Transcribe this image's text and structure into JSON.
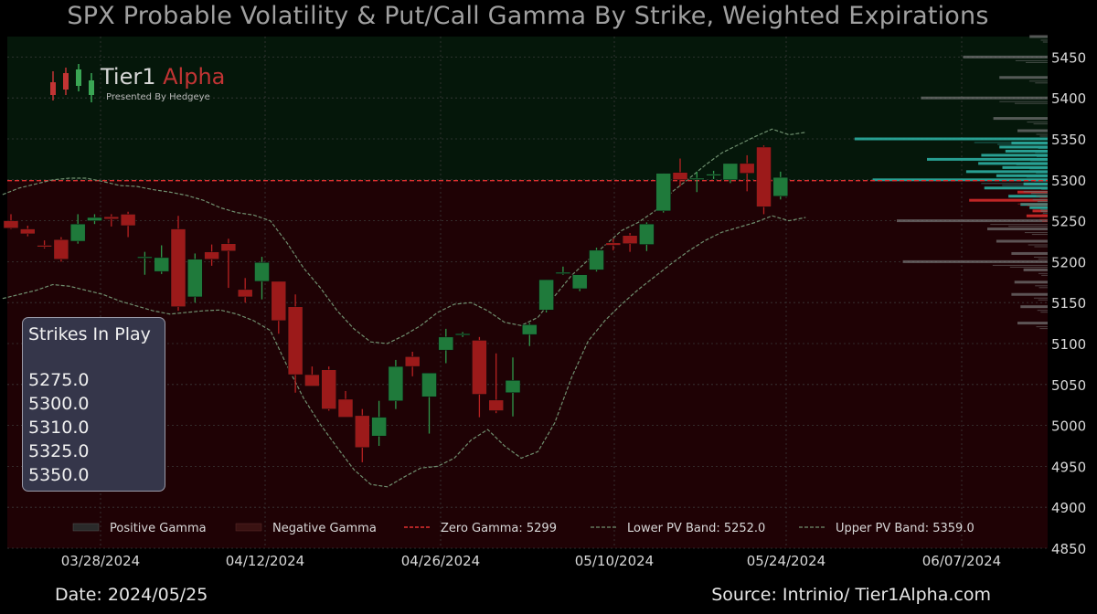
{
  "title": "SPX Probable Volatility & Put/Call Gamma By Strike, Weighted Expirations",
  "footer": {
    "date": "Date: 2024/05/25",
    "source": "Source: Intrinio/ Tier1Alpha.com"
  },
  "logo": {
    "brand_main": "Tier1",
    "brand_accent": "Alpha",
    "tagline": "Presented By Hedgeye"
  },
  "strikes_box": {
    "title": "Strikes In Play",
    "strikes": [
      "5275.0",
      "5300.0",
      "5310.0",
      "5325.0",
      "5350.0"
    ]
  },
  "colors": {
    "background": "#000000",
    "positive_region": "#05170a",
    "negative_region": "#1f0205",
    "candle_up": "#1f7a3b",
    "candle_down": "#9c1a1a",
    "band_color": "#6f8f6f",
    "zero_gamma": "#e03030",
    "gamma_positive": "#2aa69a",
    "gamma_negative": "#c82828",
    "gamma_minor": "#777777"
  },
  "chart_data": {
    "type": "candlestick",
    "title": "SPX Probable Volatility & Put/Call Gamma By Strike, Weighted Expirations",
    "ylim": [
      4850,
      5475
    ],
    "y_ticks": [
      4850,
      4900,
      4950,
      5000,
      5050,
      5100,
      5150,
      5200,
      5250,
      5300,
      5350,
      5400,
      5450
    ],
    "x_ticks": [
      "03/28/2024",
      "04/12/2024",
      "04/26/2024",
      "05/10/2024",
      "05/24/2024",
      "06/07/2024"
    ],
    "grid": true,
    "zero_gamma": 5299,
    "legend": {
      "placement": "bottom",
      "items": [
        {
          "key": "positive",
          "label": "Positive Gamma"
        },
        {
          "key": "negative",
          "label": "Negative Gamma"
        },
        {
          "key": "zero",
          "label": "Zero Gamma: 5299"
        },
        {
          "key": "lower",
          "label": "Lower PV Band: 5252.0"
        },
        {
          "key": "upper",
          "label": "Upper PV Band: 5359.0"
        }
      ]
    },
    "candles": [
      {
        "date": "2024-03-22",
        "open": 5250,
        "high": 5258,
        "low": 5240,
        "close": 5241
      },
      {
        "date": "2024-03-25",
        "open": 5240,
        "high": 5244,
        "low": 5231,
        "close": 5234
      },
      {
        "date": "2024-03-26",
        "open": 5220,
        "high": 5226,
        "low": 5216,
        "close": 5218
      },
      {
        "date": "2024-03-27",
        "open": 5227,
        "high": 5230,
        "low": 5200,
        "close": 5203
      },
      {
        "date": "2024-03-28",
        "open": 5225,
        "high": 5258,
        "low": 5222,
        "close": 5246
      },
      {
        "date": "2024-04-01",
        "open": 5250,
        "high": 5258,
        "low": 5246,
        "close": 5254
      },
      {
        "date": "2024-04-02",
        "open": 5255,
        "high": 5258,
        "low": 5243,
        "close": 5252
      },
      {
        "date": "2024-04-03",
        "open": 5258,
        "high": 5261,
        "low": 5230,
        "close": 5244
      },
      {
        "date": "2024-04-04",
        "open": 5205,
        "high": 5212,
        "low": 5184,
        "close": 5206
      },
      {
        "date": "2024-04-05",
        "open": 5188,
        "high": 5220,
        "low": 5185,
        "close": 5205
      },
      {
        "date": "2024-04-08",
        "open": 5240,
        "high": 5256,
        "low": 5140,
        "close": 5145
      },
      {
        "date": "2024-04-09",
        "open": 5157,
        "high": 5210,
        "low": 5150,
        "close": 5203
      },
      {
        "date": "2024-04-10",
        "open": 5212,
        "high": 5221,
        "low": 5195,
        "close": 5203
      },
      {
        "date": "2024-04-11",
        "open": 5222,
        "high": 5228,
        "low": 5168,
        "close": 5213
      },
      {
        "date": "2024-04-12",
        "open": 5166,
        "high": 5180,
        "low": 5150,
        "close": 5157
      },
      {
        "date": "2024-04-15",
        "open": 5176,
        "high": 5206,
        "low": 5154,
        "close": 5199
      },
      {
        "date": "2024-04-16",
        "open": 5176,
        "high": 5176,
        "low": 5112,
        "close": 5128
      },
      {
        "date": "2024-04-17",
        "open": 5145,
        "high": 5160,
        "low": 5040,
        "close": 5062
      },
      {
        "date": "2024-04-18",
        "open": 5062,
        "high": 5072,
        "low": 5048,
        "close": 5048
      },
      {
        "date": "2024-04-19",
        "open": 5068,
        "high": 5072,
        "low": 5018,
        "close": 5020
      },
      {
        "date": "2024-04-22",
        "open": 5032,
        "high": 5042,
        "low": 5012,
        "close": 5010
      },
      {
        "date": "2024-04-23",
        "open": 5012,
        "high": 5020,
        "low": 4955,
        "close": 4973
      },
      {
        "date": "2024-04-24",
        "open": 4987,
        "high": 5030,
        "low": 4975,
        "close": 5010
      },
      {
        "date": "2024-04-25",
        "open": 5030,
        "high": 5080,
        "low": 5020,
        "close": 5072
      },
      {
        "date": "2024-04-26",
        "open": 5084,
        "high": 5090,
        "low": 5060,
        "close": 5072
      },
      {
        "date": "2024-04-29",
        "open": 5035,
        "high": 5058,
        "low": 4990,
        "close": 5064
      },
      {
        "date": "2024-04-30",
        "open": 5092,
        "high": 5118,
        "low": 5076,
        "close": 5108
      },
      {
        "date": "2024-05-01",
        "open": 5112,
        "high": 5114,
        "low": 5108,
        "close": 5112
      },
      {
        "date": "2024-05-02",
        "open": 5104,
        "high": 5108,
        "low": 5010,
        "close": 5038
      },
      {
        "date": "2024-05-03",
        "open": 5031,
        "high": 5088,
        "low": 5015,
        "close": 5018
      },
      {
        "date": "2024-05-06",
        "open": 5040,
        "high": 5083,
        "low": 5011,
        "close": 5055
      },
      {
        "date": "2024-05-07",
        "open": 5111,
        "high": 5125,
        "low": 5097,
        "close": 5123
      },
      {
        "date": "2024-05-08",
        "open": 5141,
        "high": 5178,
        "low": 5138,
        "close": 5178
      },
      {
        "date": "2024-05-09",
        "open": 5187,
        "high": 5194,
        "low": 5184,
        "close": 5187
      },
      {
        "date": "2024-05-10",
        "open": 5167,
        "high": 5184,
        "low": 5164,
        "close": 5184
      },
      {
        "date": "2024-05-13",
        "open": 5190,
        "high": 5217,
        "low": 5188,
        "close": 5214
      },
      {
        "date": "2024-05-14",
        "open": 5223,
        "high": 5228,
        "low": 5214,
        "close": 5220
      },
      {
        "date": "2024-05-15",
        "open": 5232,
        "high": 5235,
        "low": 5212,
        "close": 5222
      },
      {
        "date": "2024-05-16",
        "open": 5221,
        "high": 5248,
        "low": 5213,
        "close": 5246
      },
      {
        "date": "2024-05-17",
        "open": 5262,
        "high": 5308,
        "low": 5260,
        "close": 5308
      },
      {
        "date": "2024-05-20",
        "open": 5309,
        "high": 5326,
        "low": 5292,
        "close": 5300
      },
      {
        "date": "2024-05-21",
        "open": 5301,
        "high": 5310,
        "low": 5285,
        "close": 5302
      },
      {
        "date": "2024-05-22",
        "open": 5305,
        "high": 5311,
        "low": 5301,
        "close": 5307
      },
      {
        "date": "2024-05-23",
        "open": 5300,
        "high": 5318,
        "low": 5296,
        "close": 5320
      },
      {
        "date": "2024-05-24",
        "open": 5320,
        "high": 5330,
        "low": 5286,
        "close": 5308
      },
      {
        "date": "2024-05-27",
        "open": 5340,
        "high": 5342,
        "low": 5258,
        "close": 5267
      },
      {
        "date": "2024-05-28",
        "open": 5280,
        "high": 5310,
        "low": 5276,
        "close": 5303
      }
    ],
    "bands": {
      "upper": [
        5282,
        5290,
        5295,
        5300,
        5302,
        5302,
        5298,
        5293,
        5292,
        5288,
        5285,
        5281,
        5275,
        5266,
        5260,
        5257,
        5250,
        5223,
        5192,
        5168,
        5140,
        5118,
        5102,
        5100,
        5110,
        5122,
        5138,
        5148,
        5150,
        5140,
        5126,
        5122,
        5132,
        5158,
        5183,
        5202,
        5220,
        5238,
        5248,
        5262,
        5285,
        5301,
        5318,
        5333,
        5343,
        5353,
        5362,
        5355,
        5358
      ],
      "lower": [
        5155,
        5160,
        5165,
        5172,
        5170,
        5165,
        5160,
        5152,
        5146,
        5140,
        5136,
        5138,
        5140,
        5141,
        5136,
        5128,
        5116,
        5073,
        5033,
        5001,
        4973,
        4946,
        4928,
        4925,
        4937,
        4948,
        4950,
        4960,
        4982,
        4995,
        4975,
        4960,
        4968,
        5003,
        5058,
        5103,
        5128,
        5148,
        5166,
        5182,
        5198,
        5213,
        5226,
        5236,
        5242,
        5248,
        5256,
        5250,
        5254
      ]
    },
    "gamma_profile": [
      {
        "strike": 5125,
        "value": 0.1,
        "sign": "minor"
      },
      {
        "strike": 5145,
        "value": 0.09,
        "sign": "minor"
      },
      {
        "strike": 5160,
        "value": 0.12,
        "sign": "minor"
      },
      {
        "strike": 5175,
        "value": 0.11,
        "sign": "minor"
      },
      {
        "strike": 5190,
        "value": 0.08,
        "sign": "minor"
      },
      {
        "strike": 5200,
        "value": 0.48,
        "sign": "minor"
      },
      {
        "strike": 5210,
        "value": 0.12,
        "sign": "minor"
      },
      {
        "strike": 5225,
        "value": 0.17,
        "sign": "minor"
      },
      {
        "strike": 5240,
        "value": 0.2,
        "sign": "minor"
      },
      {
        "strike": 5250,
        "value": 0.5,
        "sign": "minor"
      },
      {
        "strike": 5256,
        "value": 0.07,
        "sign": "negative"
      },
      {
        "strike": 5262,
        "value": 0.05,
        "sign": "negative"
      },
      {
        "strike": 5266,
        "value": 0.06,
        "sign": "positive"
      },
      {
        "strike": 5270,
        "value": 0.09,
        "sign": "positive"
      },
      {
        "strike": 5275,
        "value": 0.26,
        "sign": "negative"
      },
      {
        "strike": 5280,
        "value": 0.13,
        "sign": "positive"
      },
      {
        "strike": 5285,
        "value": 0.1,
        "sign": "negative"
      },
      {
        "strike": 5290,
        "value": 0.21,
        "sign": "positive"
      },
      {
        "strike": 5295,
        "value": 0.08,
        "sign": "positive"
      },
      {
        "strike": 5300,
        "value": 0.58,
        "sign": "positive"
      },
      {
        "strike": 5305,
        "value": 0.17,
        "sign": "positive"
      },
      {
        "strike": 5310,
        "value": 0.27,
        "sign": "positive"
      },
      {
        "strike": 5315,
        "value": 0.15,
        "sign": "positive"
      },
      {
        "strike": 5320,
        "value": 0.23,
        "sign": "positive"
      },
      {
        "strike": 5325,
        "value": 0.4,
        "sign": "positive"
      },
      {
        "strike": 5330,
        "value": 0.22,
        "sign": "positive"
      },
      {
        "strike": 5335,
        "value": 0.14,
        "sign": "positive"
      },
      {
        "strike": 5340,
        "value": 0.16,
        "sign": "positive"
      },
      {
        "strike": 5345,
        "value": 0.12,
        "sign": "positive"
      },
      {
        "strike": 5350,
        "value": 0.64,
        "sign": "positive"
      },
      {
        "strike": 5360,
        "value": 0.1,
        "sign": "minor"
      },
      {
        "strike": 5375,
        "value": 0.18,
        "sign": "minor"
      },
      {
        "strike": 5400,
        "value": 0.42,
        "sign": "minor"
      },
      {
        "strike": 5425,
        "value": 0.16,
        "sign": "minor"
      },
      {
        "strike": 5450,
        "value": 0.28,
        "sign": "minor"
      },
      {
        "strike": 5475,
        "value": 0.06,
        "sign": "minor"
      }
    ]
  }
}
